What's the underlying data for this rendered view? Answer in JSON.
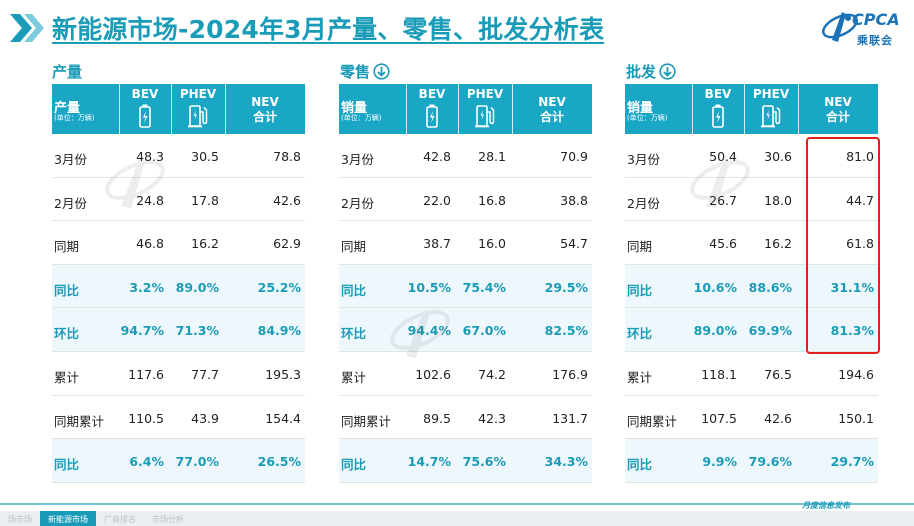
{
  "header": {
    "title": "新能源市场-2024年3月产量、零售、批发分析表",
    "logo_text": "CPCA",
    "logo_cn": "乘联会"
  },
  "footer": {
    "note": "月度信息发布",
    "tabs": [
      "场市场",
      "新能源市场",
      "厂商排名",
      "市场分析"
    ],
    "active_tab": 1
  },
  "colors": {
    "accent": "#1aa7c6",
    "title": "#1a9bb7",
    "highlight_box": "#e0201b"
  },
  "sections": [
    {
      "title": "产量",
      "corner_label": "产量",
      "unit": "(单位：万辆)",
      "columns": [
        "BEV",
        "PHEV",
        "NEV",
        "合计"
      ],
      "rows": [
        {
          "label": "3月份",
          "bev": "48.3",
          "phev": "30.5",
          "nev": "78.8"
        },
        {
          "label": "2月份",
          "bev": "24.8",
          "phev": "17.8",
          "nev": "42.6"
        },
        {
          "label": "同期",
          "bev": "46.8",
          "phev": "16.2",
          "nev": "62.9"
        },
        {
          "label": "同比",
          "bev": "3.2%",
          "phev": "89.0%",
          "nev": "25.2%"
        },
        {
          "label": "环比",
          "bev": "94.7%",
          "phev": "71.3%",
          "nev": "84.9%"
        },
        {
          "label": "累计",
          "bev": "117.6",
          "phev": "77.7",
          "nev": "195.3"
        },
        {
          "label": "同期累计",
          "bev": "110.5",
          "phev": "43.9",
          "nev": "154.4"
        },
        {
          "label": "同比",
          "bev": "6.4%",
          "phev": "77.0%",
          "nev": "26.5%"
        }
      ]
    },
    {
      "title": "零售",
      "corner_label": "销量",
      "unit": "(单位：万辆)",
      "columns": [
        "BEV",
        "PHEV",
        "NEV",
        "合计"
      ],
      "rows": [
        {
          "label": "3月份",
          "bev": "42.8",
          "phev": "28.1",
          "nev": "70.9"
        },
        {
          "label": "2月份",
          "bev": "22.0",
          "phev": "16.8",
          "nev": "38.8"
        },
        {
          "label": "同期",
          "bev": "38.7",
          "phev": "16.0",
          "nev": "54.7"
        },
        {
          "label": "同比",
          "bev": "10.5%",
          "phev": "75.4%",
          "nev": "29.5%"
        },
        {
          "label": "环比",
          "bev": "94.4%",
          "phev": "67.0%",
          "nev": "82.5%"
        },
        {
          "label": "累计",
          "bev": "102.6",
          "phev": "74.2",
          "nev": "176.9"
        },
        {
          "label": "同期累计",
          "bev": "89.5",
          "phev": "42.3",
          "nev": "131.7"
        },
        {
          "label": "同比",
          "bev": "14.7%",
          "phev": "75.6%",
          "nev": "34.3%"
        }
      ]
    },
    {
      "title": "批发",
      "corner_label": "销量",
      "unit": "(单位：万辆)",
      "columns": [
        "BEV",
        "PHEV",
        "NEV",
        "合计"
      ],
      "rows": [
        {
          "label": "3月份",
          "bev": "50.4",
          "phev": "30.6",
          "nev": "81.0"
        },
        {
          "label": "2月份",
          "bev": "26.7",
          "phev": "18.0",
          "nev": "44.7"
        },
        {
          "label": "同期",
          "bev": "45.6",
          "phev": "16.2",
          "nev": "61.8"
        },
        {
          "label": "同比",
          "bev": "10.6%",
          "phev": "88.6%",
          "nev": "31.1%"
        },
        {
          "label": "环比",
          "bev": "89.0%",
          "phev": "69.9%",
          "nev": "81.3%"
        },
        {
          "label": "累计",
          "bev": "118.1",
          "phev": "76.5",
          "nev": "194.6"
        },
        {
          "label": "同期累计",
          "bev": "107.5",
          "phev": "42.6",
          "nev": "150.1"
        },
        {
          "label": "同比",
          "bev": "9.9%",
          "phev": "79.6%",
          "nev": "29.7%"
        }
      ]
    }
  ]
}
